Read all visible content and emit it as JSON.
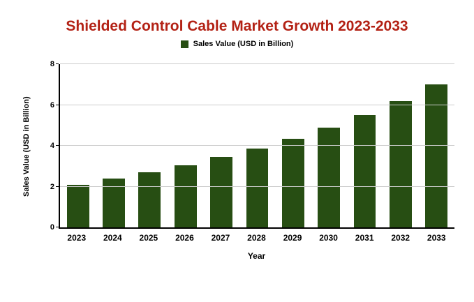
{
  "chart_data": {
    "type": "bar",
    "title": "Shielded Control Cable Market Growth 2023-2033",
    "legend_label": "Sales Value (USD in Billion)",
    "categories": [
      "2023",
      "2024",
      "2025",
      "2026",
      "2027",
      "2028",
      "2029",
      "2030",
      "2031",
      "2032",
      "2033"
    ],
    "values": [
      2.1,
      2.4,
      2.7,
      3.05,
      3.45,
      3.85,
      4.35,
      4.9,
      5.5,
      6.2,
      7.0
    ],
    "xlabel": "Year",
    "ylabel": "Sales Value (USD in Billion)",
    "ylim": [
      0,
      8
    ],
    "yticks": [
      0,
      2,
      4,
      6,
      8
    ],
    "grid": true,
    "legend_position": "top",
    "colors": {
      "bar": "#274e13",
      "title": "#b32114",
      "grid": "#cccccc",
      "axis": "#000000",
      "background": "#ffffff"
    }
  }
}
